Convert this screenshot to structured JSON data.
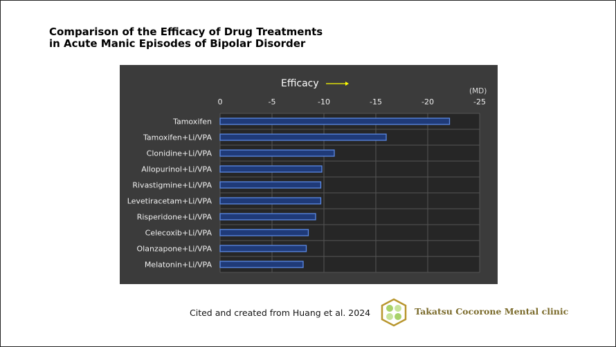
{
  "title": {
    "line1": "Comparison of the Efficacy of Drug Treatments",
    "line2": "in Acute Manic Episodes of Bipolar Disorder"
  },
  "chart_data": {
    "type": "bar",
    "orientation": "horizontal",
    "xlabel": "Efficacy",
    "unit": "(MD)",
    "xlim": [
      0,
      -25
    ],
    "ticks": [
      "0",
      "-5",
      "-10",
      "-15",
      "-20",
      "-25"
    ],
    "tick_values": [
      0,
      -5,
      -10,
      -15,
      -20,
      -25
    ],
    "grid": true,
    "categories": [
      "Tamoxifen",
      "Tamoxifen+Li/VPA",
      "Clonidine+Li/VPA",
      "Allopurinol+Li/VPA",
      "Rivastigmine+Li/VPA",
      "Levetiracetam+Li/VPA",
      "Risperidone+Li/VPA",
      "Celecoxib+Li/VPA",
      "Olanzapone+Li/VPA",
      "Melatonin+Li/VPA"
    ],
    "values": [
      -22.1,
      -16.0,
      -11.0,
      -9.8,
      -9.7,
      -9.7,
      -9.2,
      -8.5,
      -8.3,
      -8.0
    ],
    "colors": {
      "bar_fill": "#1f3a78",
      "bar_edge": "#5b8ae6",
      "plot_bg": "#262626",
      "panel_bg": "#3b3b3b",
      "arrow": "#ffff00"
    }
  },
  "citation": "Cited and created from Huang et al. 2024",
  "clinic": {
    "name": "Takatsu Cocorone Mental clinic",
    "logo_icon": "clover-hexagon-logo"
  }
}
